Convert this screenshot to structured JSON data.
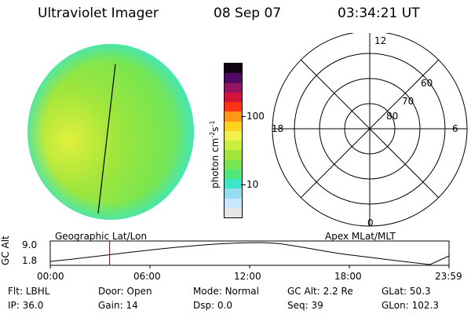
{
  "header": {
    "instrument": "Ultraviolet Imager",
    "date": "08 Sep 07",
    "time": "03:34:21 UT"
  },
  "colorbar": {
    "unit": "photon cm",
    "unit_sup1": "-2",
    "unit_mid": "s",
    "unit_sup2": "-1",
    "ticks": [
      {
        "value": 100,
        "label": "100"
      },
      {
        "value": 10,
        "label": "10"
      }
    ],
    "colors": [
      "#e6e6e6",
      "#c8e6ff",
      "#96dcf0",
      "#3ce6c8",
      "#50e678",
      "#78e650",
      "#a0e63c",
      "#c8f03c",
      "#f0f050",
      "#ffd21e",
      "#ff9614",
      "#ff3214",
      "#d2143c",
      "#961464",
      "#500a64",
      "#140014"
    ]
  },
  "polar": {
    "mlt_labels": {
      "top": "12",
      "left": "18",
      "right": "6",
      "bottom": "0"
    },
    "lat_labels": [
      "60",
      "70",
      "80"
    ]
  },
  "timeline": {
    "ylabel": "GC Alt",
    "yticks": [
      "9.0",
      "1.8"
    ],
    "left_label": "Geographic Lat/Lon",
    "right_label": "Apex MLat/MLT",
    "xticks": [
      "00:00",
      "06:00",
      "12:00",
      "18:00",
      "23:59"
    ],
    "current_time_hours": 3.57
  },
  "info": {
    "row1": [
      {
        "key": "Flt:",
        "value": "LBHL"
      },
      {
        "key": "Door:",
        "value": "Open"
      },
      {
        "key": "Mode:",
        "value": "Normal"
      },
      {
        "key": "GC Alt:",
        "value": "2.2 Re"
      },
      {
        "key": "GLat:",
        "value": "50.3"
      }
    ],
    "row2": [
      {
        "key": "IP:",
        "value": "36.0"
      },
      {
        "key": "Gain:",
        "value": "14"
      },
      {
        "key": "Dsp:",
        "value": "0.0"
      },
      {
        "key": "Seq:",
        "value": "39"
      },
      {
        "key": "GLon:",
        "value": "102.3"
      }
    ]
  },
  "colors": {
    "disk_main": "#78e650",
    "disk_bright": "#d2f03c",
    "disk_edge": "#3ce6c8",
    "marker": "#dd0000"
  }
}
